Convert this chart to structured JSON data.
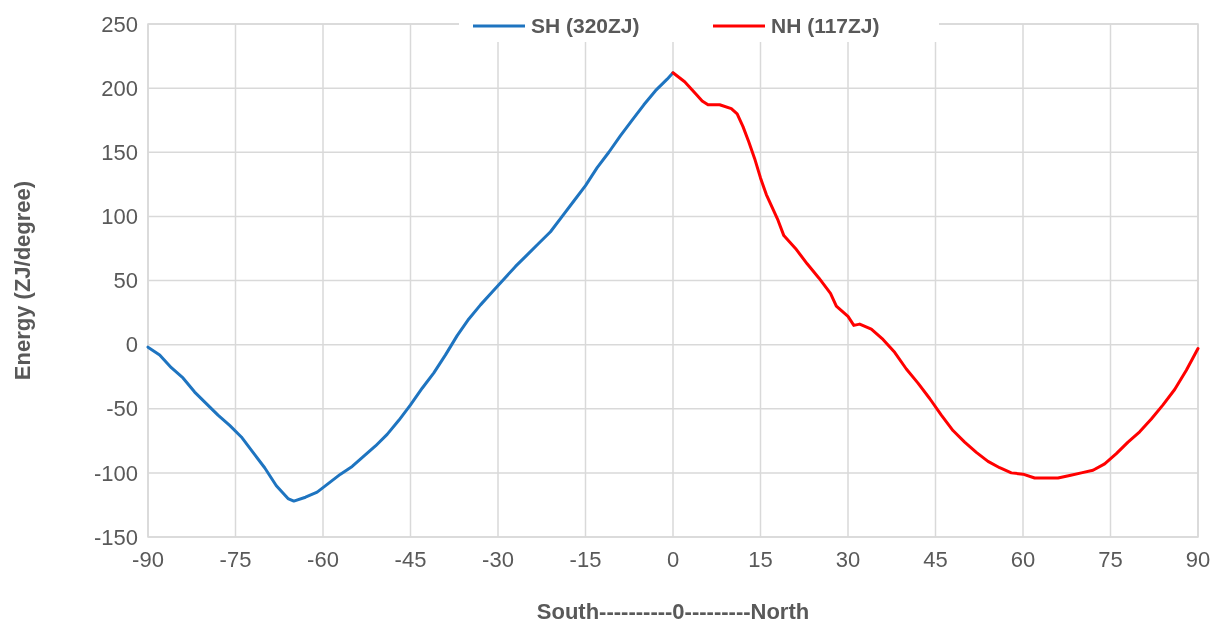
{
  "chart_data": {
    "type": "line",
    "xlabel": "South----------0---------North",
    "ylabel": "Energy (ZJ/degree)",
    "xlim": [
      -90,
      90
    ],
    "xticks": [
      -90,
      -75,
      -60,
      -45,
      -30,
      -15,
      0,
      15,
      30,
      45,
      60,
      75,
      90
    ],
    "ylim": [
      -150,
      250
    ],
    "yticks": [
      -150,
      -100,
      -50,
      0,
      50,
      100,
      150,
      200,
      250
    ],
    "grid": true,
    "legend": "top",
    "line_style": "solid",
    "series": [
      {
        "name": "SH (320ZJ)",
        "color": "#1e74c0",
        "x": [
          -90,
          -88,
          -86,
          -84,
          -82,
          -80,
          -78,
          -76,
          -74,
          -72,
          -70,
          -68,
          -66,
          -65,
          -63,
          -61,
          -59,
          -57,
          -55,
          -53,
          -51,
          -49,
          -47,
          -45,
          -43,
          -41,
          -39,
          -37,
          -35,
          -33,
          -31,
          -29,
          -27,
          -25,
          -23,
          -21,
          -19,
          -17,
          -15,
          -13,
          -11,
          -9,
          -7,
          -5,
          -3,
          -1,
          0
        ],
        "values": [
          -2,
          -8,
          -18,
          -26,
          -37,
          -46,
          -55,
          -63,
          -72,
          -84,
          -96,
          -110,
          -120,
          -122,
          -119,
          -115,
          -108,
          -101,
          -95,
          -87,
          -79,
          -70,
          -59,
          -47,
          -34,
          -22,
          -8,
          7,
          20,
          31,
          41,
          51,
          61,
          70,
          79,
          88,
          100,
          112,
          124,
          138,
          150,
          163,
          175,
          187,
          198,
          207,
          212
        ]
      },
      {
        "name": "NH (117ZJ)",
        "color": "#ff0000",
        "x": [
          0,
          2,
          4,
          5,
          6,
          8,
          10,
          11,
          12,
          13,
          14,
          15,
          16,
          18,
          19,
          21,
          23,
          25,
          27,
          28,
          30,
          31,
          32,
          34,
          36,
          38,
          40,
          42,
          44,
          46,
          48,
          50,
          52,
          54,
          56,
          58,
          60,
          62,
          64,
          66,
          68,
          70,
          72,
          74,
          76,
          78,
          80,
          82,
          84,
          86,
          88,
          90
        ],
        "values": [
          212,
          205,
          195,
          190,
          187,
          187,
          184,
          180,
          170,
          158,
          145,
          130,
          117,
          97,
          85,
          75,
          63,
          52,
          40,
          30,
          22,
          15,
          16,
          12,
          4,
          -6,
          -19,
          -30,
          -42,
          -55,
          -67,
          -76,
          -84,
          -91,
          -96,
          -100,
          -101,
          -104,
          -104,
          -104,
          -102,
          -100,
          -98,
          -93,
          -85,
          -76,
          -68,
          -58,
          -47,
          -35,
          -20,
          -3
        ]
      }
    ]
  }
}
